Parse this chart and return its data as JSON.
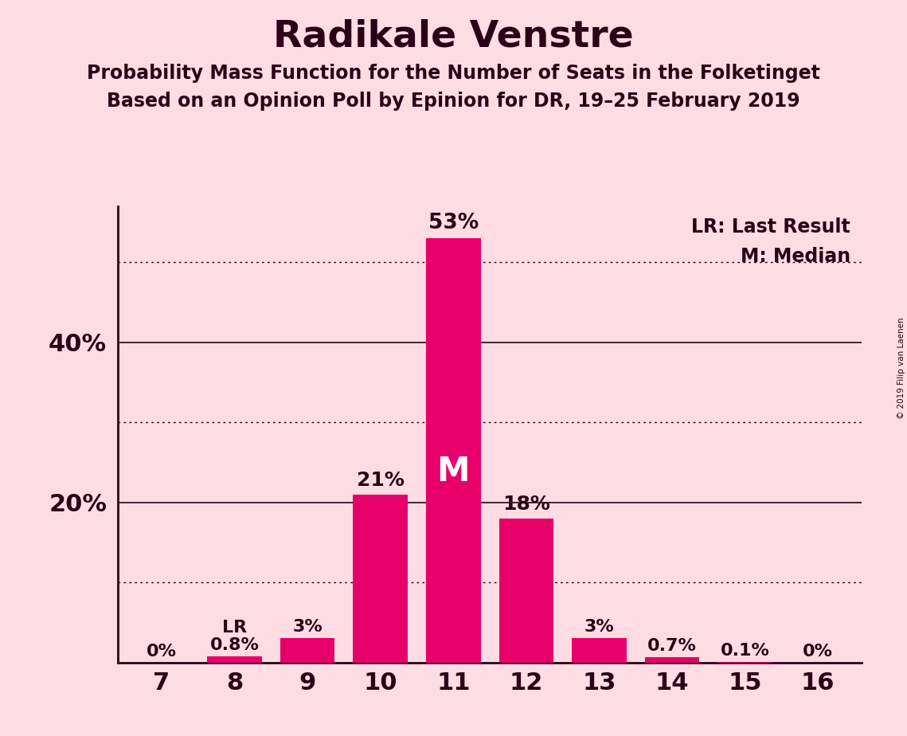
{
  "title": "Radikale Venstre",
  "subtitle1": "Probability Mass Function for the Number of Seats in the Folketinget",
  "subtitle2": "Based on an Opinion Poll by Epinion for DR, 19–25 February 2019",
  "copyright": "© 2019 Filip van Laenen",
  "seats": [
    7,
    8,
    9,
    10,
    11,
    12,
    13,
    14,
    15,
    16
  ],
  "values": [
    0.0,
    0.8,
    3.0,
    21.0,
    53.0,
    18.0,
    3.0,
    0.7,
    0.1,
    0.0
  ],
  "labels": [
    "0%",
    "0.8%",
    "3%",
    "21%",
    "53%",
    "18%",
    "3%",
    "0.7%",
    "0.1%",
    "0%"
  ],
  "bar_color": "#E8006A",
  "background_color": "#FDDDE3",
  "text_color": "#2D0018",
  "title_fontsize": 34,
  "subtitle_fontsize": 17,
  "label_fontsize": 16,
  "ytick_labels": [
    "20%",
    "40%"
  ],
  "ytick_values": [
    20,
    40
  ],
  "solid_gridlines": [
    20,
    40
  ],
  "dotted_gridlines": [
    10,
    30,
    50
  ],
  "ylim": [
    0,
    57
  ],
  "lr_seat": 8,
  "median_seat": 11,
  "legend_lr": "LR: Last Result",
  "legend_m": "M: Median"
}
